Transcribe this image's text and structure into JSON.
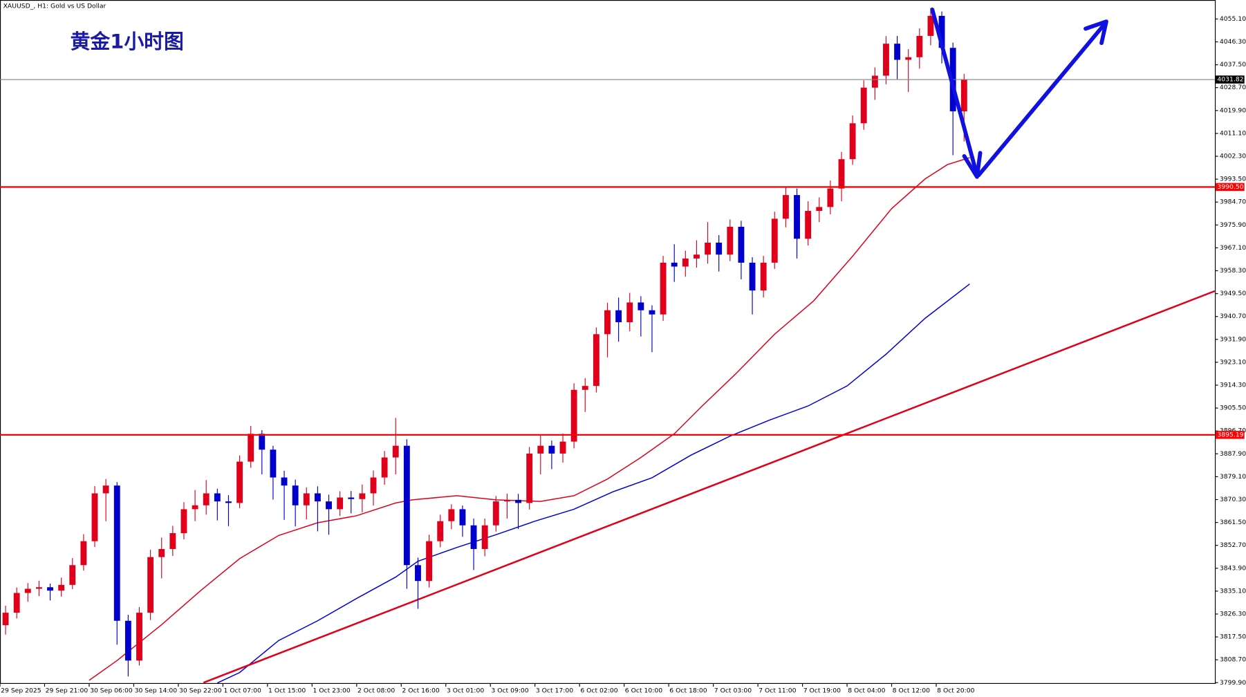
{
  "chart_data": {
    "type": "candlestick",
    "title": "XAUUSD_, H1:  Gold vs US Dollar",
    "annotation": "黄金1小时图",
    "up_color": "#e0001b",
    "down_color": "#0000cc",
    "x": [
      1,
      3,
      5,
      7,
      9,
      11,
      13,
      15,
      17,
      19,
      21,
      23,
      25,
      27,
      29,
      31,
      33,
      35,
      37,
      39,
      41,
      43,
      45,
      47,
      49,
      51,
      53,
      55,
      57,
      59,
      61,
      63,
      65,
      67,
      69,
      71,
      73,
      75,
      77,
      79,
      81,
      83,
      85,
      87,
      89,
      91,
      93,
      95,
      97,
      99,
      101,
      103,
      105,
      107,
      109,
      111,
      113,
      115,
      117,
      119,
      121,
      123,
      125,
      127,
      129,
      131,
      133,
      135,
      137,
      139,
      141,
      143,
      145,
      147,
      149,
      151,
      153,
      155,
      157,
      159,
      161,
      163,
      165,
      167,
      169,
      171,
      173
    ],
    "open": [
      3822.0,
      3826.8,
      3834.4,
      3836.0,
      3836.6,
      3835.3,
      3837.5,
      3845.1,
      3854.3,
      3872.7,
      3875.7,
      3823.7,
      3808.4,
      3826.8,
      3848.2,
      3851.3,
      3857.4,
      3866.6,
      3868.1,
      3872.7,
      3869.6,
      3869.0,
      3884.9,
      3895.6,
      3889.5,
      3878.8,
      3875.7,
      3868.1,
      3872.7,
      3869.6,
      3866.6,
      3871.1,
      3870.5,
      3872.7,
      3878.8,
      3886.5,
      3891.0,
      3845.1,
      3839.0,
      3854.3,
      3862.0,
      3866.6,
      3860.4,
      3851.3,
      3860.4,
      3869.6,
      3870.2,
      3869.0,
      3888.0,
      3891.0,
      3888.0,
      3892.6,
      3912.5,
      3914.0,
      3933.9,
      3943.1,
      3938.5,
      3946.1,
      3943.1,
      3941.5,
      3961.4,
      3959.9,
      3963.0,
      3964.5,
      3969.1,
      3964.5,
      3975.2,
      3961.4,
      3950.7,
      3961.4,
      3978.3,
      3987.4,
      3970.6,
      3981.3,
      3982.8,
      3989.9,
      4001.2,
      4015.0,
      4028.7,
      4033.3,
      4045.6,
      4039.4,
      4040.4,
      4048.6,
      4056.3,
      4044.0,
      4019.6
    ],
    "high": [
      3829.5,
      3836.5,
      3838.2,
      3839.1,
      3838.0,
      3840.3,
      3847.8,
      3857.0,
      3875.5,
      3878.2,
      3877.0,
      3826.0,
      3829.0,
      3851.0,
      3855.7,
      3860.2,
      3869.3,
      3874.0,
      3877.8,
      3874.5,
      3872.0,
      3887.3,
      3898.6,
      3897.0,
      3891.0,
      3881.4,
      3878.0,
      3875.0,
      3875.4,
      3872.2,
      3873.5,
      3873.6,
      3876.1,
      3881.5,
      3889.0,
      3901.7,
      3893.5,
      3848.0,
      3856.8,
      3864.5,
      3868.5,
      3868.0,
      3863.0,
      3863.0,
      3871.7,
      3872.6,
      3872.5,
      3890.5,
      3895.0,
      3893.0,
      3895.7,
      3915.0,
      3917.0,
      3936.5,
      3946.0,
      3948.0,
      3949.8,
      3948.5,
      3945.0,
      3964.0,
      3968.5,
      3966.0,
      3970.0,
      3977.0,
      3972.0,
      3978.0,
      3977.5,
      3963.5,
      3964.0,
      3981.0,
      3990.5,
      3989.9,
      3985.0,
      3986.5,
      3993.0,
      4004.0,
      4018.0,
      4031.5,
      4036.5,
      4048.5,
      4048.6,
      4043.5,
      4051.5,
      4059.3,
      4058.0,
      4046.0,
      4034.0
    ],
    "low": [
      3818.4,
      3824.6,
      3831.0,
      3833.2,
      3831.5,
      3833.0,
      3835.9,
      3843.0,
      3852.1,
      3862.0,
      3814.5,
      3802.3,
      3806.5,
      3824.0,
      3840.0,
      3848.6,
      3855.0,
      3862.0,
      3864.5,
      3862.3,
      3860.1,
      3867.0,
      3882.5,
      3880.0,
      3870.3,
      3862.5,
      3860.0,
      3862.7,
      3858.1,
      3856.8,
      3864.0,
      3865.0,
      3865.4,
      3868.0,
      3876.0,
      3880.0,
      3836.0,
      3828.3,
      3836.5,
      3852.0,
      3858.9,
      3856.0,
      3843.2,
      3848.5,
      3858.0,
      3863.0,
      3859.0,
      3866.5,
      3880.0,
      3882.0,
      3884.5,
      3890.0,
      3904.0,
      3911.5,
      3925.0,
      3931.0,
      3935.0,
      3933.0,
      3927.0,
      3939.0,
      3954.0,
      3956.0,
      3959.5,
      3961.0,
      3958.0,
      3962.0,
      3955.0,
      3941.5,
      3948.0,
      3959.0,
      3975.0,
      3963.0,
      3968.0,
      3977.0,
      3980.0,
      3985.0,
      3999.0,
      4012.5,
      4024.0,
      4030.0,
      4032.0,
      4027.0,
      4036.0,
      4045.0,
      4038.0,
      4002.7,
      4008.0
    ],
    "close": [
      3826.8,
      3834.4,
      3836.0,
      3836.6,
      3835.3,
      3837.5,
      3845.1,
      3854.3,
      3872.7,
      3875.7,
      3823.7,
      3808.4,
      3826.8,
      3848.2,
      3851.3,
      3857.4,
      3866.6,
      3868.1,
      3872.7,
      3869.6,
      3869.0,
      3884.9,
      3895.6,
      3889.5,
      3878.8,
      3875.7,
      3868.1,
      3872.7,
      3869.6,
      3866.6,
      3871.1,
      3870.5,
      3872.7,
      3878.8,
      3886.5,
      3891.0,
      3845.1,
      3839.0,
      3854.3,
      3862.0,
      3866.6,
      3860.4,
      3851.3,
      3860.4,
      3869.6,
      3870.2,
      3869.0,
      3888.0,
      3891.0,
      3888.0,
      3892.6,
      3912.5,
      3914.0,
      3933.9,
      3943.1,
      3938.5,
      3946.1,
      3943.1,
      3941.5,
      3961.4,
      3959.9,
      3963.0,
      3964.5,
      3969.1,
      3964.5,
      3975.2,
      3961.4,
      3950.7,
      3961.4,
      3978.3,
      3987.4,
      3970.6,
      3981.3,
      3982.8,
      3989.9,
      4001.2,
      4015.0,
      4028.7,
      4033.3,
      4045.6,
      4039.4,
      4040.4,
      4048.6,
      4056.3,
      4044.0,
      4019.6,
      4031.82
    ],
    "ma_lines": [
      {
        "color": "#e0001b",
        "x": [
          16,
          21,
          29,
          36,
          43,
          50,
          57,
          64,
          71,
          74,
          82,
          89,
          97,
          103,
          109,
          115,
          121,
          126,
          132,
          139,
          146,
          153,
          160,
          166,
          170,
          174
        ],
        "values": [
          3800.8,
          3808.4,
          3822.2,
          3835.3,
          3847.6,
          3856.5,
          3861.4,
          3864.1,
          3869.0,
          3870.2,
          3871.8,
          3870.2,
          3869.6,
          3871.8,
          3878.2,
          3886.5,
          3895.6,
          3906.3,
          3918.6,
          3933.9,
          3946.7,
          3963.9,
          3982.2,
          3993.6,
          3999.1,
          4001.8
        ]
      },
      {
        "color": "#0000dd",
        "x": [
          39,
          43,
          50,
          57,
          64,
          71,
          75,
          82,
          89,
          96,
          103,
          110,
          117,
          124,
          131,
          138,
          145,
          152,
          159,
          166,
          174
        ],
        "values": [
          3799.8,
          3803.8,
          3816.1,
          3823.7,
          3832.3,
          3840.5,
          3846.6,
          3851.9,
          3856.8,
          3862.0,
          3866.6,
          3873.3,
          3878.7,
          3887.4,
          3894.7,
          3900.8,
          3906.3,
          3914.0,
          3926.2,
          3940.0,
          3953.2
        ]
      }
    ],
    "trend_line": {
      "color": "#e0001b",
      "x": [
        36.5,
        218
      ],
      "values": [
        3799.9,
        3950.5
      ]
    },
    "levels": [
      {
        "value": 4031.82,
        "label": "4031.82",
        "color": "#808080",
        "box_color": "#000000"
      },
      {
        "value": 3990.5,
        "label": "3990.50",
        "color": "#ff0000",
        "box_color": "#ff0000"
      },
      {
        "value": 3895.19,
        "label": "3895.19",
        "color": "#ff0000",
        "box_color": "#ff0000"
      }
    ],
    "xlim": [
      0,
      218
    ],
    "ylim": [
      3799.6,
      4062.4
    ],
    "xticks": [
      {
        "value": 0,
        "label": "29 Sep 2025"
      },
      {
        "value": 8,
        "label": "29 Sep 21:00"
      },
      {
        "value": 16,
        "label": "30 Sep 06:00"
      },
      {
        "value": 24,
        "label": "30 Sep 14:00"
      },
      {
        "value": 32,
        "label": "30 Sep 22:00"
      },
      {
        "value": 40,
        "label": "1 Oct 07:00"
      },
      {
        "value": 48,
        "label": "1 Oct 15:00"
      },
      {
        "value": 56,
        "label": "1 Oct 23:00"
      },
      {
        "value": 64,
        "label": "2 Oct 08:00"
      },
      {
        "value": 72,
        "label": "2 Oct 16:00"
      },
      {
        "value": 80,
        "label": "3 Oct 01:00"
      },
      {
        "value": 88,
        "label": "3 Oct 09:00"
      },
      {
        "value": 96,
        "label": "3 Oct 17:00"
      },
      {
        "value": 104,
        "label": "6 Oct 02:00"
      },
      {
        "value": 112,
        "label": "6 Oct 10:00"
      },
      {
        "value": 120,
        "label": "6 Oct 18:00"
      },
      {
        "value": 128,
        "label": "7 Oct 03:00"
      },
      {
        "value": 136,
        "label": "7 Oct 11:00"
      },
      {
        "value": 144,
        "label": "7 Oct 19:00"
      },
      {
        "value": 152,
        "label": "8 Oct 04:00"
      },
      {
        "value": 160,
        "label": "8 Oct 12:00"
      },
      {
        "value": 168,
        "label": "8 Oct 20:00"
      }
    ],
    "yticks": [
      {
        "value": 4055.1,
        "label": "4055.10"
      },
      {
        "value": 4046.3,
        "label": "4046.30"
      },
      {
        "value": 4037.5,
        "label": "4037.50"
      },
      {
        "value": 4028.7,
        "label": "4028.70"
      },
      {
        "value": 4019.9,
        "label": "4019.90"
      },
      {
        "value": 4011.1,
        "label": "4011.10"
      },
      {
        "value": 4002.3,
        "label": "4002.30"
      },
      {
        "value": 3993.5,
        "label": "3993.50"
      },
      {
        "value": 3984.7,
        "label": "3984.70"
      },
      {
        "value": 3975.9,
        "label": "3975.90"
      },
      {
        "value": 3967.1,
        "label": "3967.10"
      },
      {
        "value": 3958.3,
        "label": "3958.30"
      },
      {
        "value": 3949.5,
        "label": "3949.50"
      },
      {
        "value": 3940.7,
        "label": "3940.70"
      },
      {
        "value": 3931.9,
        "label": "3931.90"
      },
      {
        "value": 3923.1,
        "label": "3923.10"
      },
      {
        "value": 3914.3,
        "label": "3914.30"
      },
      {
        "value": 3905.5,
        "label": "3905.50"
      },
      {
        "value": 3896.7,
        "label": "3896.70"
      },
      {
        "value": 3887.9,
        "label": "3887.90"
      },
      {
        "value": 3879.1,
        "label": "3879.10"
      },
      {
        "value": 3870.3,
        "label": "3870.30"
      },
      {
        "value": 3861.5,
        "label": "3861.50"
      },
      {
        "value": 3852.7,
        "label": "3852.70"
      },
      {
        "value": 3843.9,
        "label": "3843.90"
      },
      {
        "value": 3835.1,
        "label": "3835.10"
      },
      {
        "value": 3826.3,
        "label": "3826.30"
      },
      {
        "value": 3817.5,
        "label": "3817.50"
      },
      {
        "value": 3808.7,
        "label": "3808.70"
      },
      {
        "value": 3799.9,
        "label": "3799.90"
      }
    ]
  }
}
